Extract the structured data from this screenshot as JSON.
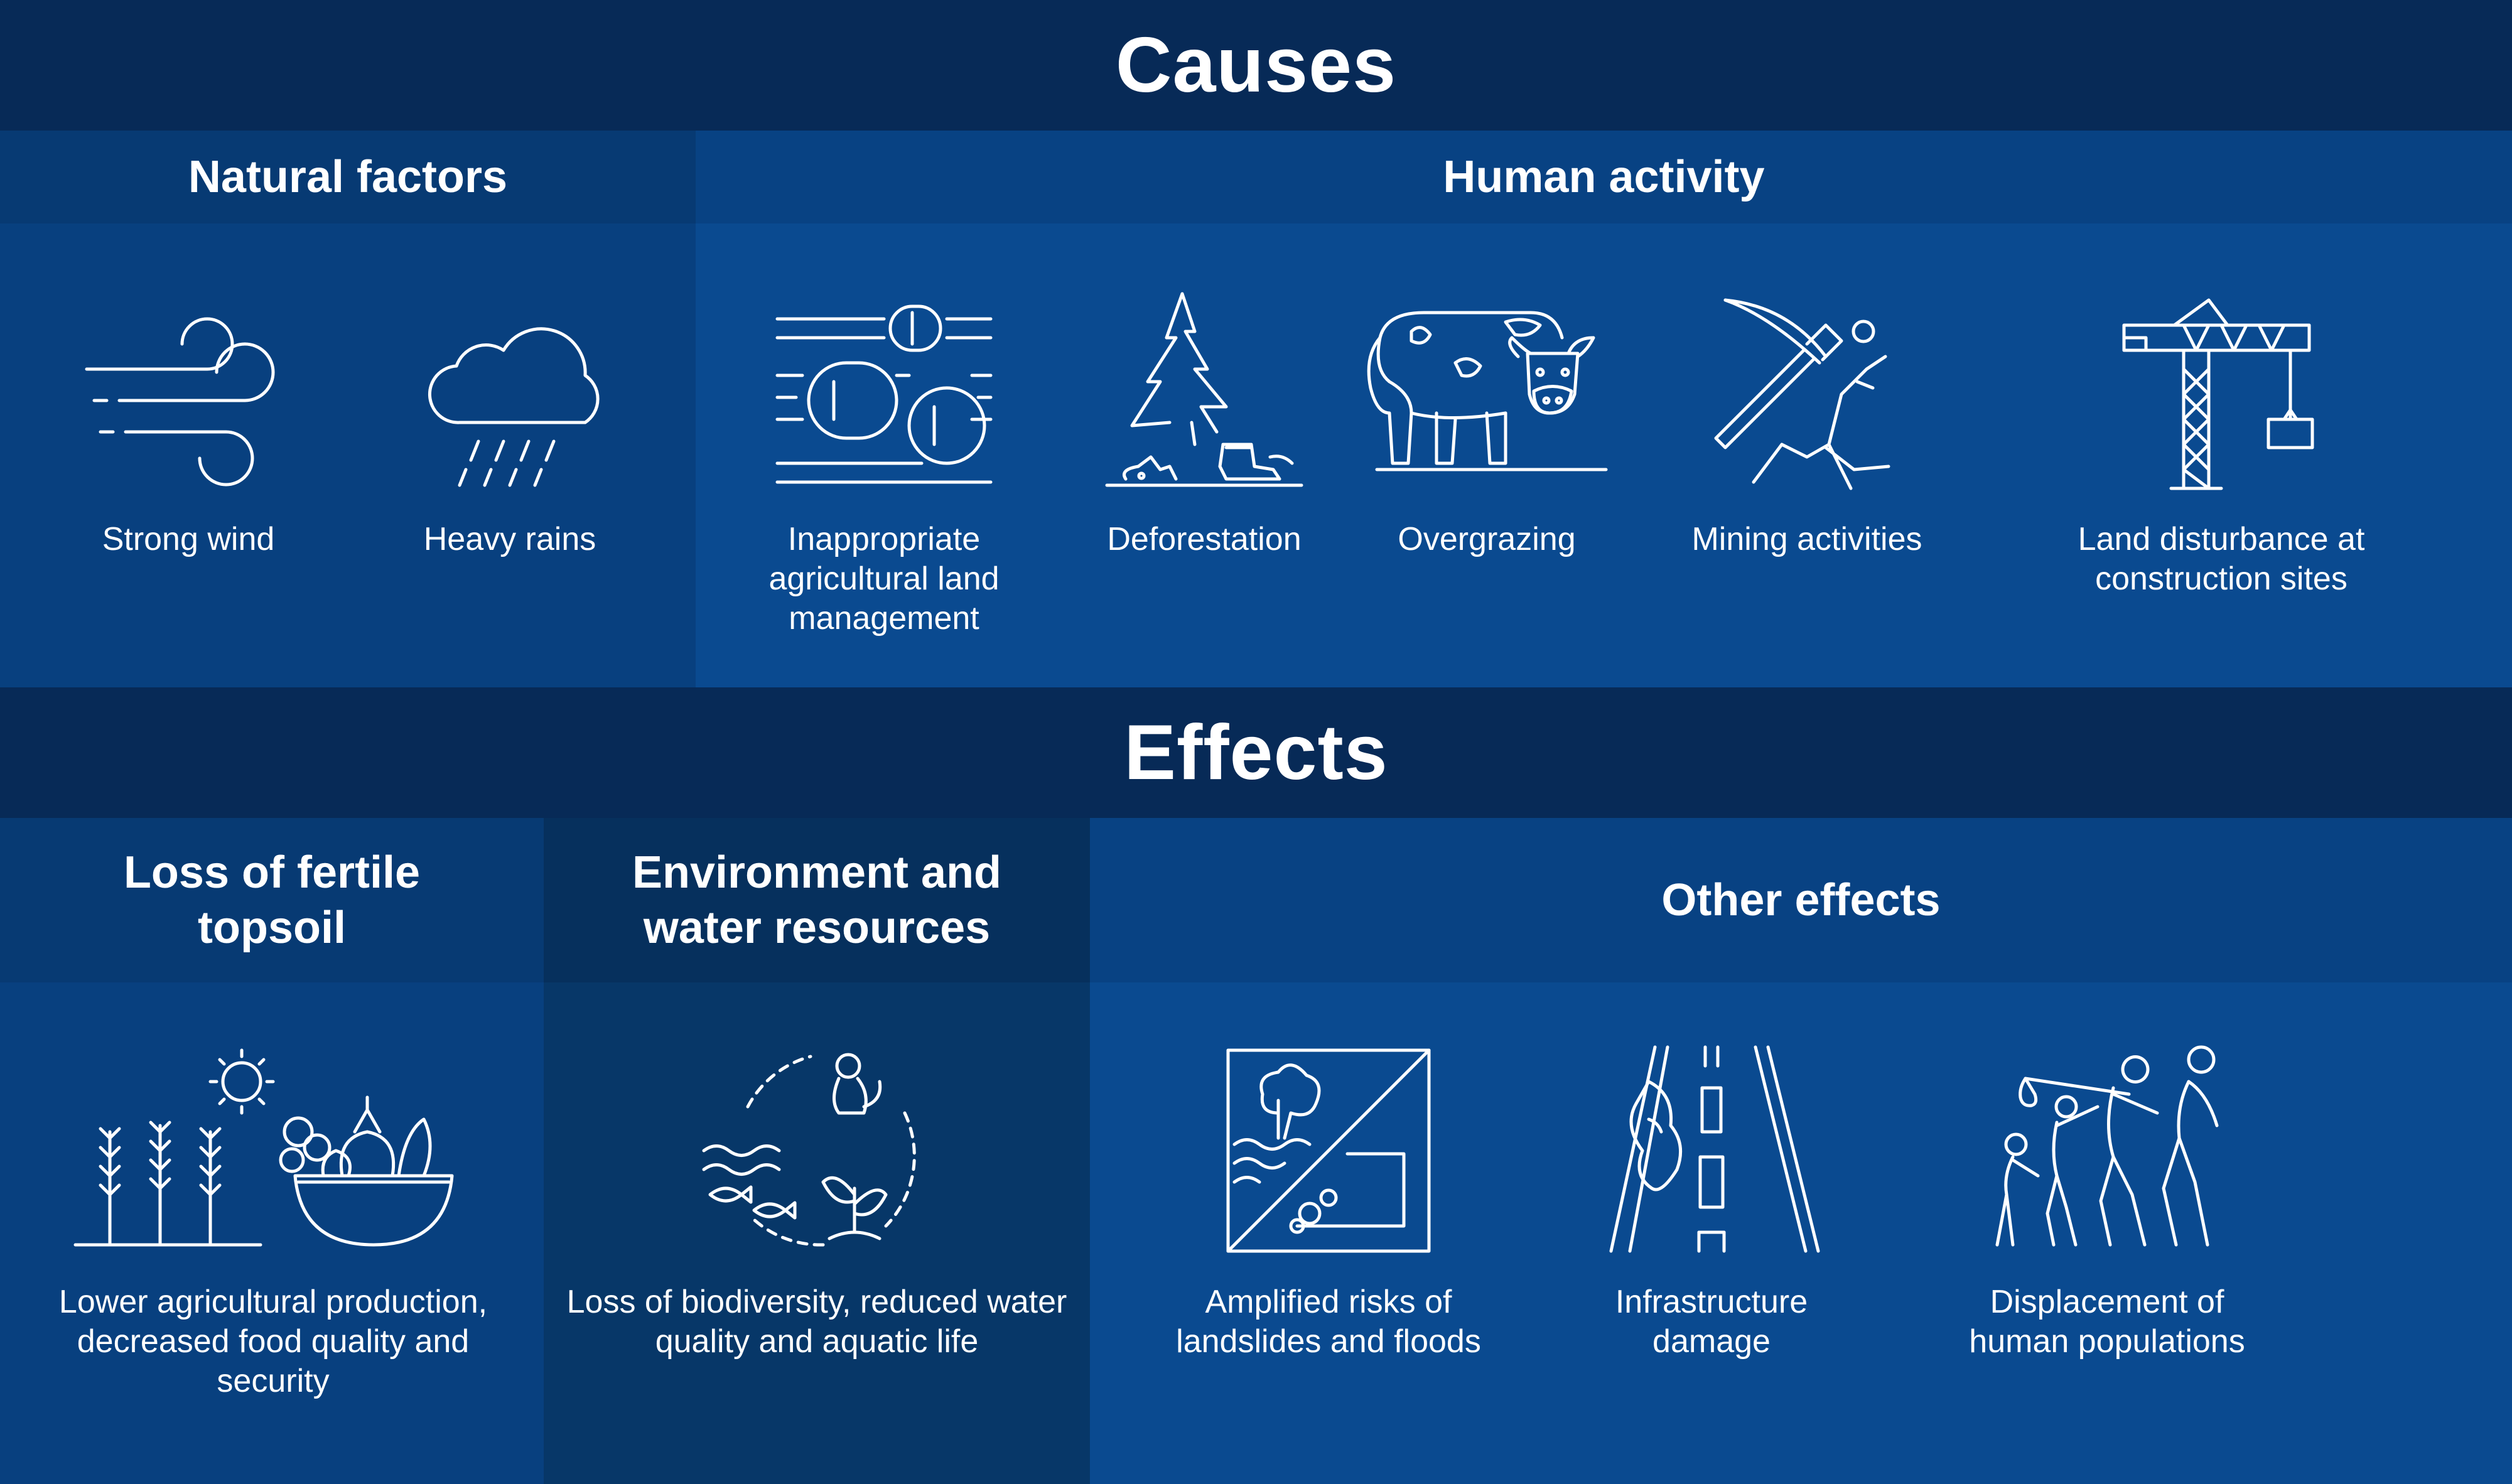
{
  "causes": {
    "title": "Causes",
    "natural": {
      "title": "Natural factors",
      "items": [
        {
          "label": "Strong wind",
          "icon": "wind-icon"
        },
        {
          "label": "Heavy rains",
          "icon": "rain-cloud-icon"
        }
      ]
    },
    "human": {
      "title": "Human activity",
      "items": [
        {
          "label": "Inappropriate agricultural land management",
          "icon": "hay-bales-icon"
        },
        {
          "label": "Deforestation",
          "icon": "tree-stump-icon"
        },
        {
          "label": "Overgrazing",
          "icon": "cow-icon"
        },
        {
          "label": "Mining activities",
          "icon": "pickaxe-icon"
        },
        {
          "label": "Land disturbance at construction sites",
          "icon": "crane-icon"
        }
      ]
    }
  },
  "effects": {
    "title": "Effects",
    "topsoil": {
      "title": "Loss of fertile topsoil",
      "items": [
        {
          "label": "Lower agricultural production, decreased food quality and security",
          "icon": "crops-and-fruit-bowl-icon"
        }
      ]
    },
    "environment": {
      "title": "Environment and water resources",
      "items": [
        {
          "label": "Loss of biodiversity, reduced water quality and aquatic life",
          "icon": "ecosystem-cycle-icon"
        }
      ]
    },
    "other": {
      "title": "Other effects",
      "items": [
        {
          "label": "Amplified risks of landslides and floods",
          "icon": "landslide-flood-icon"
        },
        {
          "label": "Infrastructure damage",
          "icon": "damaged-road-icon"
        },
        {
          "label": "Displacement of human populations",
          "icon": "migrating-people-icon"
        }
      ]
    }
  },
  "colors": {
    "title_band": "#072a57",
    "natural_panel": "#08407f",
    "natural_head": "#073a73",
    "human_panel": "#0a4a90",
    "human_head": "#084283",
    "topsoil_panel": "#08407f",
    "topsoil_head": "#073a73",
    "environment_panel": "#073768",
    "environment_head": "#06305d",
    "other_panel": "#0a4a90",
    "other_head": "#084283",
    "icon_stroke": "#ffffff"
  }
}
